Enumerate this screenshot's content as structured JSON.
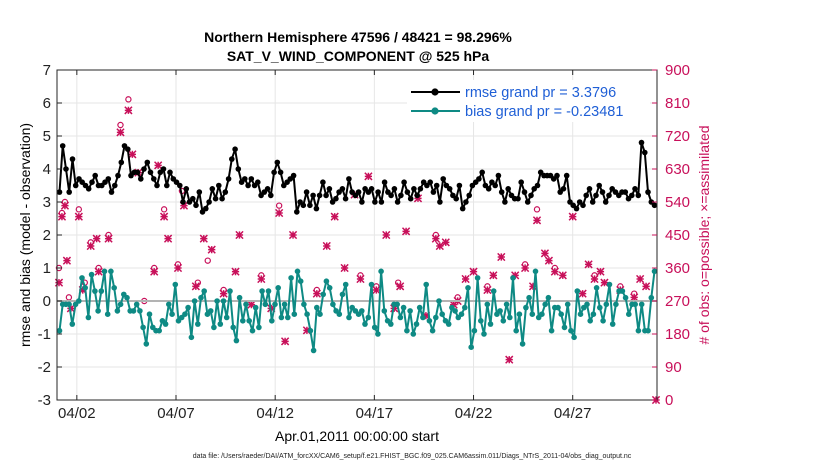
{
  "chart_data": {
    "type": "line",
    "title": "Northern Hemisphere 47596 / 48421 = 98.296%",
    "subtitle": "SAT_V_WIND_COMPONENT @ 525 hPa",
    "xlabel": "Apr.01,2011 00:00:00 start",
    "ylabel_left": "rmse and bias (model - observation)",
    "ylabel_right": "# of obs: o=possible; ×=assimilated",
    "footnote": "data file: /Users/raeder/DAI/ATM_forcXX/CAM6_setup/f.e21.FHIST_BGC.f09_025.CAM6assim.011/Diags_NTrS_2011-04/obs_diag_output.nc",
    "x_ticks": [
      {
        "day": 2,
        "label": "04/02"
      },
      {
        "day": 7,
        "label": "04/07"
      },
      {
        "day": 12,
        "label": "04/12"
      },
      {
        "day": 17,
        "label": "04/17"
      },
      {
        "day": 22,
        "label": "04/22"
      },
      {
        "day": 27,
        "label": "04/27"
      }
    ],
    "xlim": [
      1.0,
      31.25
    ],
    "ylim_left": [
      -3,
      7
    ],
    "ylim_right": [
      0,
      900
    ],
    "y_ticks_left": [
      "-3",
      "-2",
      "-1",
      "0",
      "1",
      "2",
      "3",
      "4",
      "5",
      "6",
      "7"
    ],
    "y_ticks_right": [
      "0",
      "90",
      "180",
      "270",
      "360",
      "450",
      "540",
      "630",
      "720",
      "810",
      "900"
    ],
    "grid": true,
    "legend_position": "top-right",
    "colors": {
      "rmse": "#000000",
      "bias": "#0e8a84",
      "obs": "#c8105a",
      "zero_line": "#b3b3b3",
      "grid": "#e6e6e6"
    },
    "series": [
      {
        "name": "rmse grand pr = 3.3796",
        "key": "rmse",
        "values": [
          3.3,
          4.7,
          4.0,
          3.3,
          4.3,
          3.5,
          3.7,
          3.6,
          3.5,
          3.4,
          3.6,
          3.8,
          3.5,
          3.5,
          3.6,
          3.7,
          3.3,
          3.5,
          3.8,
          4.2,
          4.7,
          4.6,
          3.8,
          3.9,
          3.9,
          3.7,
          4.0,
          4.2,
          3.9,
          3.7,
          3.5,
          3.9,
          4.0,
          3.5,
          3.9,
          3.7,
          3.6,
          3.5,
          3.0,
          3.4,
          3.0,
          3.1,
          2.9,
          3.3,
          2.7,
          2.8,
          3.0,
          3.4,
          3.1,
          3.5,
          3.1,
          3.3,
          3.7,
          4.3,
          4.6,
          4.0,
          3.6,
          3.7,
          3.5,
          3.7,
          3.5,
          3.6,
          3.2,
          3.3,
          3.4,
          3.2,
          3.9,
          4.2,
          3.9,
          3.5,
          3.6,
          3.7,
          3.8,
          2.7,
          3.0,
          2.9,
          3.3,
          2.9,
          3.2,
          2.8,
          3.2,
          3.6,
          3.2,
          3.4,
          3.0,
          3.1,
          3.3,
          3.4,
          3.1,
          3.7,
          3.3,
          3.2,
          3.3,
          3.0,
          3.4,
          3.3,
          3.4,
          3.0,
          3.3,
          3.0,
          3.6,
          3.3,
          3.2,
          3.4,
          3.0,
          3.2,
          3.6,
          3.3,
          3.1,
          3.4,
          3.2,
          3.4,
          3.6,
          3.5,
          3.6,
          3.3,
          3.5,
          3.0,
          3.7,
          3.5,
          3.4,
          3.2,
          3.1,
          3.5,
          2.8,
          3.0,
          3.2,
          3.5,
          3.6,
          3.7,
          3.9,
          3.5,
          3.4,
          3.6,
          3.5,
          3.8,
          3.3,
          3.0,
          3.4,
          3.2,
          3.1,
          3.1,
          3.6,
          3.3,
          3.0,
          3.2,
          3.4,
          3.5,
          3.9,
          3.8,
          3.8,
          3.8,
          3.7,
          3.8,
          3.3,
          3.4,
          3.8,
          3.0,
          2.9,
          2.8,
          3.0,
          2.9,
          3.2,
          3.4,
          3.0,
          3.2,
          3.5,
          3.3,
          3.0,
          3.2,
          3.4,
          3.3,
          3.2,
          3.3,
          3.3,
          3.1,
          3.2,
          3.4,
          3.2,
          4.8,
          4.5,
          3.3,
          3.0,
          2.9
        ]
      },
      {
        "name": "bias grand pr = -0.23481",
        "key": "bias",
        "values": [
          -0.9,
          -0.1,
          -0.1,
          -0.1,
          -0.7,
          -0.1,
          0.0,
          0.7,
          0.4,
          -0.5,
          0.8,
          0.3,
          -0.3,
          0.3,
          0.9,
          -0.4,
          0.9,
          0.4,
          -0.3,
          -0.1,
          0.2,
          0.1,
          -0.3,
          -0.3,
          -0.1,
          -0.3,
          -0.8,
          -1.3,
          -0.4,
          -0.8,
          -0.9,
          -0.9,
          -0.6,
          -0.7,
          -0.1,
          -0.4,
          0.5,
          -0.6,
          -0.5,
          -0.4,
          -0.2,
          -1.1,
          0.0,
          -0.7,
          0.1,
          0.3,
          -0.4,
          -0.3,
          -0.8,
          0.0,
          -0.7,
          0.0,
          -0.5,
          0.3,
          -0.8,
          -1.2,
          0.1,
          -0.6,
          -0.1,
          -0.6,
          -0.9,
          -0.2,
          -0.8,
          0.3,
          -0.1,
          0.3,
          -0.6,
          -0.1,
          0.4,
          -0.5,
          -0.1,
          -0.5,
          0.7,
          -0.4,
          0.9,
          0.6,
          -0.1,
          -0.4,
          -0.9,
          -1.5,
          -0.2,
          -0.4,
          0.2,
          0.6,
          0.4,
          -0.1,
          -0.3,
          -0.4,
          0.2,
          0.5,
          -0.5,
          -0.2,
          -0.3,
          -0.4,
          -0.3,
          -0.7,
          -0.5,
          0.5,
          -0.8,
          -1.0,
          0.9,
          -0.3,
          -0.6,
          -0.7,
          -0.1,
          -0.1,
          -0.5,
          -0.2,
          -0.9,
          -0.3,
          -1.0,
          -0.7,
          -0.2,
          -0.5,
          0.5,
          -0.6,
          -0.9,
          -0.5,
          0.0,
          -0.4,
          -0.6,
          -0.7,
          -0.2,
          -0.3,
          -0.5,
          -0.4,
          -0.2,
          0.4,
          -1.4,
          -0.9,
          0.7,
          -0.6,
          -1.0,
          -0.1,
          -0.7,
          0.3,
          -0.4,
          -0.3,
          -0.6,
          -0.1,
          -0.5,
          0.7,
          -0.9,
          -0.4,
          -1.3,
          -0.2,
          0.1,
          -0.4,
          0.9,
          -0.5,
          -0.4,
          -0.1,
          0.1,
          -0.9,
          -0.2,
          -0.2,
          -0.4,
          -0.8,
          -0.1,
          -0.9,
          -1.1,
          0.3,
          -0.4,
          -0.2,
          -0.1,
          -0.6,
          -0.4,
          0.4,
          -0.2,
          -0.6,
          -0.1,
          0.5,
          -0.7,
          -0.1,
          0.3,
          0.3,
          0.1,
          -0.4,
          -0.1,
          -0.1,
          -0.9,
          -0.1,
          -0.9,
          -0.9,
          0.1,
          0.9
        ]
      }
    ],
    "obs_possible": [
      {
        "day": 1.1,
        "count": 360
      },
      {
        "day": 1.25,
        "count": 510
      },
      {
        "day": 1.4,
        "count": 540
      },
      {
        "day": 1.6,
        "count": 280
      },
      {
        "day": 2.1,
        "count": 520
      },
      {
        "day": 2.4,
        "count": 320
      },
      {
        "day": 2.7,
        "count": 430
      },
      {
        "day": 3.1,
        "count": 360
      },
      {
        "day": 3.6,
        "count": 450
      },
      {
        "day": 4.2,
        "count": 750
      },
      {
        "day": 4.6,
        "count": 820
      },
      {
        "day": 5.4,
        "count": 270
      },
      {
        "day": 5.9,
        "count": 360
      },
      {
        "day": 6.4,
        "count": 520
      },
      {
        "day": 7.1,
        "count": 370
      },
      {
        "day": 7.3,
        "count": 570
      },
      {
        "day": 8.1,
        "count": 320
      },
      {
        "day": 8.6,
        "count": 380
      },
      {
        "day": 9.4,
        "count": 300
      },
      {
        "day": 11.3,
        "count": 340
      },
      {
        "day": 12.2,
        "count": 530
      },
      {
        "day": 14.1,
        "count": 300
      },
      {
        "day": 16.3,
        "count": 340
      },
      {
        "day": 17.1,
        "count": 310
      },
      {
        "day": 18.2,
        "count": 320
      },
      {
        "day": 20.1,
        "count": 450
      },
      {
        "day": 21.2,
        "count": 280
      },
      {
        "day": 22.7,
        "count": 310
      },
      {
        "day": 24.6,
        "count": 370
      },
      {
        "day": 25.2,
        "count": 520
      },
      {
        "day": 26.1,
        "count": 360
      },
      {
        "day": 28.1,
        "count": 340
      },
      {
        "day": 29.4,
        "count": 310
      },
      {
        "day": 30.1,
        "count": 290
      }
    ],
    "obs_assimilated": [
      {
        "day": 1.1,
        "count": 320
      },
      {
        "day": 1.25,
        "count": 500
      },
      {
        "day": 1.4,
        "count": 530
      },
      {
        "day": 1.5,
        "count": 380
      },
      {
        "day": 1.7,
        "count": 250
      },
      {
        "day": 2.1,
        "count": 500
      },
      {
        "day": 2.3,
        "count": 300
      },
      {
        "day": 2.7,
        "count": 420
      },
      {
        "day": 3.0,
        "count": 440
      },
      {
        "day": 3.1,
        "count": 350
      },
      {
        "day": 3.6,
        "count": 440
      },
      {
        "day": 4.2,
        "count": 730
      },
      {
        "day": 4.6,
        "count": 790
      },
      {
        "day": 4.8,
        "count": 670
      },
      {
        "day": 5.1,
        "count": 620
      },
      {
        "day": 5.9,
        "count": 350
      },
      {
        "day": 6.1,
        "count": 640
      },
      {
        "day": 6.4,
        "count": 500
      },
      {
        "day": 6.6,
        "count": 440
      },
      {
        "day": 7.1,
        "count": 360
      },
      {
        "day": 7.4,
        "count": 530
      },
      {
        "day": 8.0,
        "count": 310
      },
      {
        "day": 8.4,
        "count": 440
      },
      {
        "day": 8.8,
        "count": 410
      },
      {
        "day": 9.4,
        "count": 290
      },
      {
        "day": 10.0,
        "count": 350
      },
      {
        "day": 10.2,
        "count": 450
      },
      {
        "day": 10.8,
        "count": 260
      },
      {
        "day": 11.3,
        "count": 330
      },
      {
        "day": 11.8,
        "count": 250
      },
      {
        "day": 12.2,
        "count": 510
      },
      {
        "day": 12.5,
        "count": 160
      },
      {
        "day": 12.9,
        "count": 450
      },
      {
        "day": 13.6,
        "count": 190
      },
      {
        "day": 14.1,
        "count": 290
      },
      {
        "day": 14.6,
        "count": 420
      },
      {
        "day": 15.0,
        "count": 500
      },
      {
        "day": 15.5,
        "count": 360
      },
      {
        "day": 16.0,
        "count": 560
      },
      {
        "day": 16.3,
        "count": 330
      },
      {
        "day": 16.7,
        "count": 610
      },
      {
        "day": 17.1,
        "count": 300
      },
      {
        "day": 17.6,
        "count": 450
      },
      {
        "day": 18.0,
        "count": 250
      },
      {
        "day": 18.3,
        "count": 310
      },
      {
        "day": 18.6,
        "count": 460
      },
      {
        "day": 19.2,
        "count": 550
      },
      {
        "day": 19.6,
        "count": 230
      },
      {
        "day": 20.1,
        "count": 440
      },
      {
        "day": 20.3,
        "count": 420
      },
      {
        "day": 20.6,
        "count": 430
      },
      {
        "day": 21.0,
        "count": 260
      },
      {
        "day": 21.2,
        "count": 270
      },
      {
        "day": 21.6,
        "count": 330
      },
      {
        "day": 22.0,
        "count": 350
      },
      {
        "day": 22.7,
        "count": 300
      },
      {
        "day": 23.0,
        "count": 340
      },
      {
        "day": 23.4,
        "count": 390
      },
      {
        "day": 23.8,
        "count": 110
      },
      {
        "day": 24.1,
        "count": 340
      },
      {
        "day": 24.6,
        "count": 360
      },
      {
        "day": 25.0,
        "count": 310
      },
      {
        "day": 25.2,
        "count": 490
      },
      {
        "day": 25.6,
        "count": 400
      },
      {
        "day": 25.8,
        "count": 380
      },
      {
        "day": 26.1,
        "count": 350
      },
      {
        "day": 26.5,
        "count": 340
      },
      {
        "day": 27.0,
        "count": 500
      },
      {
        "day": 27.5,
        "count": 290
      },
      {
        "day": 27.8,
        "count": 370
      },
      {
        "day": 28.1,
        "count": 330
      },
      {
        "day": 28.4,
        "count": 350
      },
      {
        "day": 28.6,
        "count": 320
      },
      {
        "day": 29.4,
        "count": 300
      },
      {
        "day": 30.1,
        "count": 280
      },
      {
        "day": 30.4,
        "count": 330
      },
      {
        "day": 30.7,
        "count": 310
      },
      {
        "day": 31.2,
        "count": 0
      }
    ]
  }
}
